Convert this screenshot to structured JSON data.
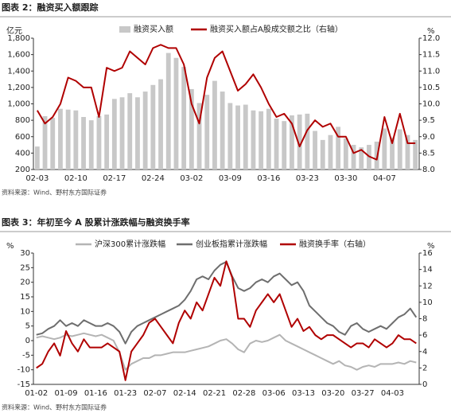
{
  "chart_data": [
    {
      "type": "combo",
      "title": "图表 2：融资买入额跟踪",
      "note": "资料来源：Wind、野村东方国际证券",
      "y_unit": "亿元",
      "y2_unit": "%",
      "categories": [
        "02-03",
        null,
        null,
        null,
        null,
        "02-10",
        null,
        null,
        null,
        null,
        "02-17",
        null,
        null,
        null,
        null,
        "02-24",
        null,
        null,
        null,
        null,
        "03-02",
        null,
        null,
        null,
        null,
        "03-09",
        null,
        null,
        null,
        null,
        "03-16",
        null,
        null,
        null,
        null,
        "03-23",
        null,
        null,
        null,
        null,
        "03-30",
        null,
        null,
        null,
        null,
        "04-07",
        null,
        null,
        null,
        null
      ],
      "ylim": [
        200,
        1800
      ],
      "yticks": [
        200,
        400,
        600,
        800,
        {
          "value": 1000,
          "label": "1,000"
        },
        {
          "value": 1200,
          "label": "1,200"
        },
        {
          "value": 1400,
          "label": "1,400"
        },
        {
          "value": 1600,
          "label": "1,600"
        },
        {
          "value": 1800,
          "label": "1,800"
        }
      ],
      "y2lim": [
        8,
        12
      ],
      "y2ticks": [
        {
          "value": 8,
          "label": "8.0"
        },
        {
          "value": 8.5,
          "label": "8.5"
        },
        {
          "value": 9,
          "label": "9.0"
        },
        {
          "value": 9.5,
          "label": "9.5"
        },
        {
          "value": 10,
          "label": "10.0"
        },
        {
          "value": 10.5,
          "label": "10.5"
        },
        {
          "value": 11,
          "label": "11.0"
        },
        {
          "value": 11.5,
          "label": "11.5"
        },
        {
          "value": 12,
          "label": "12.0"
        }
      ],
      "series": [
        {
          "name": "融资买入额",
          "type": "bar",
          "color": "#c8c8c8",
          "values": [
            480,
            850,
            830,
            940,
            930,
            920,
            840,
            800,
            850,
            870,
            1060,
            1080,
            1130,
            1080,
            1150,
            1230,
            1300,
            1620,
            1560,
            1450,
            1180,
            1010,
            1110,
            1280,
            1150,
            1010,
            980,
            990,
            920,
            910,
            940,
            820,
            790,
            860,
            870,
            880,
            670,
            560,
            620,
            720,
            580,
            500,
            470,
            500,
            540,
            700,
            590,
            690,
            620,
            560
          ]
        },
        {
          "name": "融资买入额占A股成交额之比（右轴）",
          "type": "line",
          "axis": "y2",
          "color": "#b00000",
          "values": [
            9.8,
            9.4,
            9.6,
            10.0,
            10.8,
            10.7,
            10.5,
            10.5,
            9.6,
            11.1,
            11.0,
            11.1,
            11.6,
            11.4,
            11.2,
            11.7,
            11.8,
            11.7,
            11.7,
            11.2,
            10.0,
            9.4,
            10.8,
            11.4,
            11.6,
            11.0,
            10.4,
            10.6,
            10.9,
            10.5,
            10.0,
            9.6,
            9.7,
            9.4,
            8.7,
            9.2,
            9.5,
            9.3,
            9.4,
            9.0,
            9.0,
            8.5,
            8.6,
            8.4,
            8.3,
            9.6,
            8.8,
            9.7,
            8.8,
            8.8
          ]
        }
      ]
    },
    {
      "type": "line",
      "title": "图表 3：年初至今 A 股累计涨跌幅与融资换手率",
      "note": "资料来源：Wind、野村东方国际证券",
      "y_unit": "%",
      "y2_unit": "%",
      "categories": [
        "01-02",
        null,
        null,
        null,
        null,
        "01-09",
        null,
        null,
        null,
        null,
        "01-16",
        null,
        null,
        null,
        null,
        "01-23",
        null,
        null,
        null,
        null,
        "02-07",
        null,
        null,
        null,
        null,
        "02-14",
        null,
        null,
        null,
        null,
        "02-21",
        null,
        null,
        null,
        null,
        "02-28",
        null,
        null,
        null,
        null,
        "03-06",
        null,
        null,
        null,
        null,
        "03-13",
        null,
        null,
        null,
        null,
        "03-20",
        null,
        null,
        null,
        null,
        "03-27",
        null,
        null,
        null,
        null,
        "04-03",
        null,
        null,
        null,
        null
      ],
      "ylim": [
        -15,
        30
      ],
      "yticks": [
        -15,
        -10,
        -5,
        0,
        5,
        10,
        15,
        20,
        25,
        30
      ],
      "y2lim": [
        0,
        16
      ],
      "y2ticks": [
        0,
        2,
        4,
        6,
        8,
        10,
        12,
        14,
        16
      ],
      "series": [
        {
          "name": "沪深300累计涨跌幅",
          "color": "#b4b4b4",
          "values": [
            1,
            1.5,
            1,
            0.5,
            1,
            2,
            1.5,
            2,
            2.5,
            2,
            1.5,
            2,
            1,
            0,
            -4,
            -10,
            -8,
            -7,
            -6,
            -6,
            -5,
            -5,
            -4.5,
            -4,
            -4,
            -4,
            -3.5,
            -3,
            -2.5,
            -2,
            -1,
            0,
            0.5,
            -1,
            -3,
            -4,
            -1,
            0,
            -0.5,
            0,
            1,
            2,
            0,
            -1,
            -2,
            -3,
            -4,
            -5,
            -6,
            -7,
            -8,
            -7,
            -8.5,
            -9,
            -10,
            -9,
            -8.5,
            -9,
            -8,
            -8,
            -8,
            -7.5,
            -8,
            -7,
            -7.5
          ]
        },
        {
          "name": "创业板指累计涨跌幅",
          "color": "#6e6e6e",
          "values": [
            2,
            2.5,
            4,
            5,
            7,
            5,
            6,
            5,
            7,
            6,
            5,
            5,
            6,
            5,
            3,
            -1,
            3,
            5,
            6,
            7,
            8,
            9,
            10,
            11,
            12,
            14,
            17,
            21,
            22,
            21,
            24,
            26,
            27,
            22,
            18,
            17,
            18,
            20,
            21,
            20,
            22,
            23,
            21,
            19,
            20,
            17,
            12,
            10,
            8,
            6,
            5,
            3,
            2,
            5,
            6,
            4,
            3,
            4,
            5,
            4,
            6,
            8,
            9,
            11,
            8
          ]
        },
        {
          "name": "融资换手率（右轴）",
          "axis": "y2",
          "color": "#b00000",
          "values": [
            2,
            2.5,
            4,
            5,
            3.5,
            6.5,
            5,
            4,
            5.5,
            4.5,
            4.5,
            4.5,
            5,
            4.5,
            4,
            0.5,
            4,
            5,
            6,
            7.5,
            8,
            7,
            6,
            5,
            7.5,
            9,
            8,
            10,
            9,
            11,
            13,
            12,
            15,
            13,
            8,
            8,
            7,
            9,
            10,
            11,
            10,
            11,
            9,
            7,
            8,
            6.5,
            7,
            6,
            5.5,
            6,
            6,
            5.5,
            5,
            4.5,
            5,
            5,
            4.5,
            5.5,
            5,
            4.5,
            5,
            6,
            5.5,
            5.5,
            5
          ]
        }
      ]
    }
  ]
}
